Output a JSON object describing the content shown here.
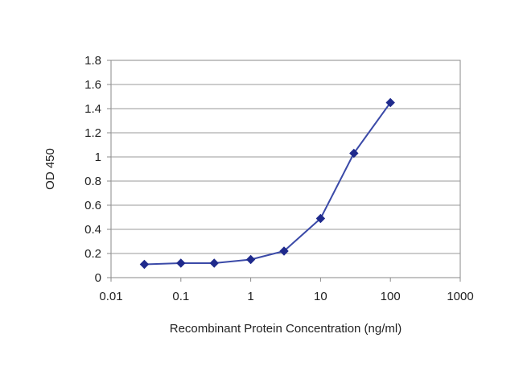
{
  "chart_data": {
    "type": "line",
    "xlabel": "Recombinant Protein Concentration (ng/ml)",
    "ylabel": "OD 450",
    "xscale": "log",
    "xlim": [
      0.01,
      1000
    ],
    "ylim": [
      0,
      1.8
    ],
    "x_ticks": [
      0.01,
      0.1,
      1,
      10,
      100,
      1000
    ],
    "x_tick_labels": [
      "0.01",
      "0.1",
      "1",
      "10",
      "100",
      "1000"
    ],
    "y_ticks": [
      0,
      0.2,
      0.4,
      0.6,
      0.8,
      1,
      1.2,
      1.4,
      1.6,
      1.8
    ],
    "y_tick_labels": [
      "0",
      "0.2",
      "0.4",
      "0.6",
      "0.8",
      "1",
      "1.2",
      "1.4",
      "1.6",
      "1.8"
    ],
    "grid": "horizontal",
    "legend": "none",
    "series": [
      {
        "x": [
          0.03,
          0.1,
          0.3,
          1,
          3,
          10,
          30,
          100
        ],
        "y": [
          0.11,
          0.12,
          0.12,
          0.15,
          0.22,
          0.49,
          1.03,
          1.45
        ],
        "color": "#3b4aa8",
        "marker": "diamond",
        "marker_color": "#1f2a8c"
      }
    ]
  }
}
